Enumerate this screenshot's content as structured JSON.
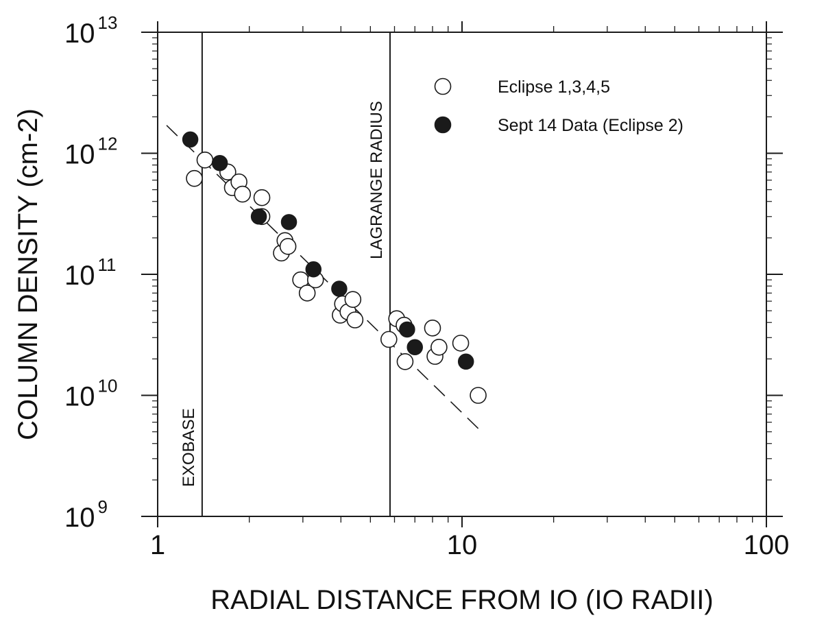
{
  "chart_data": {
    "type": "scatter",
    "xlabel": "RADIAL DISTANCE FROM IO (IO RADII)",
    "ylabel": "COLUMN DENSITY (cm-2)",
    "x_scale": "log",
    "y_scale": "log",
    "xlim": [
      1,
      100
    ],
    "ylim": [
      1000000000.0,
      10000000000000.0
    ],
    "x_tick_labels": [
      "1",
      "10",
      "100"
    ],
    "y_tick_labels": [
      {
        "base": "10",
        "exp": "9"
      },
      {
        "base": "10",
        "exp": "10"
      },
      {
        "base": "10",
        "exp": "11"
      },
      {
        "base": "10",
        "exp": "12"
      },
      {
        "base": "10",
        "exp": "13"
      }
    ],
    "grid": false,
    "legend_position": "top-right",
    "series": [
      {
        "name": "Eclipse 1,3,4,5",
        "marker": "open-circle",
        "points": [
          [
            1.32,
            620000000000.0
          ],
          [
            1.43,
            880000000000.0
          ],
          [
            1.7,
            700000000000.0
          ],
          [
            1.76,
            520000000000.0
          ],
          [
            1.85,
            580000000000.0
          ],
          [
            1.9,
            460000000000.0
          ],
          [
            2.2,
            430000000000.0
          ],
          [
            2.2,
            300000000000.0
          ],
          [
            2.55,
            150000000000.0
          ],
          [
            2.62,
            190000000000.0
          ],
          [
            2.68,
            170000000000.0
          ],
          [
            2.95,
            90000000000.0
          ],
          [
            3.1,
            70000000000.0
          ],
          [
            3.3,
            90000000000.0
          ],
          [
            3.98,
            46000000000.0
          ],
          [
            4.05,
            57000000000.0
          ],
          [
            4.22,
            49000000000.0
          ],
          [
            4.38,
            62000000000.0
          ],
          [
            4.45,
            42000000000.0
          ],
          [
            5.75,
            29000000000.0
          ],
          [
            6.1,
            43000000000.0
          ],
          [
            6.45,
            38000000000.0
          ],
          [
            6.5,
            19000000000.0
          ],
          [
            8.0,
            36000000000.0
          ],
          [
            8.15,
            21000000000.0
          ],
          [
            8.4,
            25000000000.0
          ],
          [
            9.9,
            27000000000.0
          ],
          [
            11.3,
            10000000000.0
          ]
        ]
      },
      {
        "name": "Sept 14 Data (Eclipse 2)",
        "marker": "filled-circle",
        "points": [
          [
            1.28,
            1300000000000.0
          ],
          [
            1.6,
            830000000000.0
          ],
          [
            2.15,
            300000000000.0
          ],
          [
            2.7,
            270000000000.0
          ],
          [
            3.25,
            110000000000.0
          ],
          [
            3.95,
            76000000000.0
          ],
          [
            6.6,
            35000000000.0
          ],
          [
            7.0,
            25000000000.0
          ],
          [
            10.3,
            19000000000.0
          ]
        ]
      }
    ],
    "fit_line": {
      "style": "dashed",
      "points": [
        [
          1.07,
          1700000000000.0
        ],
        [
          11.6,
          5000000000.0
        ]
      ]
    },
    "vertical_lines": [
      {
        "x": 1.4,
        "label": "EXOBASE"
      },
      {
        "x": 5.8,
        "label": "LAGRANGE RADIUS"
      }
    ]
  }
}
